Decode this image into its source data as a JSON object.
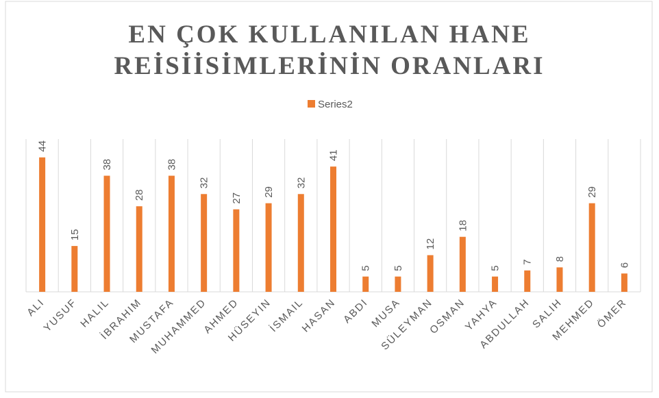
{
  "chart_data": {
    "type": "bar",
    "title": "EN ÇOK KULLANILAN HANE REİSİİSİMLERİNİN ORANLARI",
    "categories": [
      "ALI",
      "YUSUF",
      "HALIL",
      "İBRAHIM",
      "MUSTAFA",
      "MUHAMMED",
      "AHMED",
      "HÜSEYIN",
      "İSMAIL",
      "HASAN",
      "ABDI",
      "MUSA",
      "SÜLEYMAN",
      "OSMAN",
      "YAHYA",
      "ABDULLAH",
      "SALIH",
      "MEHMED",
      "ÖMER"
    ],
    "series": [
      {
        "name": "Series2",
        "color": "#ed7d31",
        "values": [
          44,
          15,
          38,
          28,
          38,
          32,
          27,
          29,
          32,
          41,
          5,
          5,
          12,
          18,
          5,
          7,
          8,
          29,
          6
        ]
      }
    ],
    "ylim": [
      0,
      50
    ],
    "legend": "top"
  }
}
